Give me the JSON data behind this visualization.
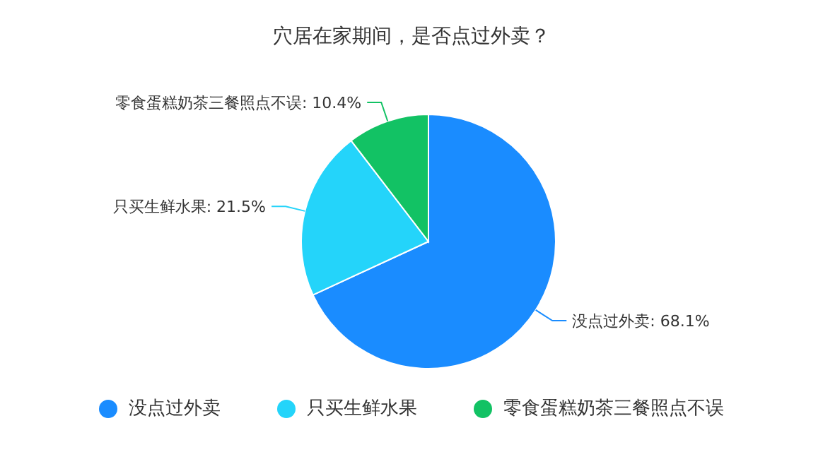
{
  "chart_data": {
    "type": "pie",
    "title": "穴居在家期间，是否点过外卖？",
    "categories": [
      "没点过外卖",
      "只买生鲜水果",
      "零食蛋糕奶茶三餐照点不误"
    ],
    "values": [
      68.1,
      21.5,
      10.4
    ],
    "value_labels": [
      "没点过外卖: 68.1%",
      "只买生鲜水果: 21.5%",
      "零食蛋糕奶茶三餐照点不误: 10.4%"
    ],
    "colors": [
      "#1a8cff",
      "#24d4fa",
      "#12c264"
    ],
    "legend": "bottom"
  }
}
